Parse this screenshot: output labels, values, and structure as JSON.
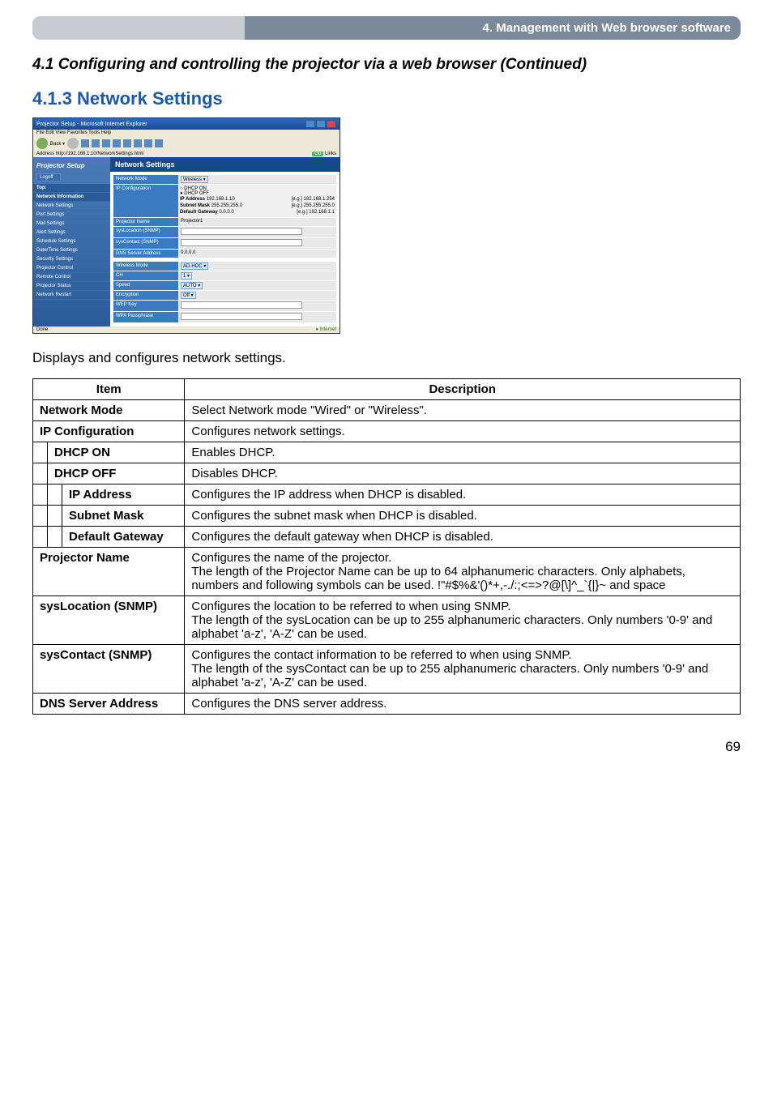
{
  "header": {
    "title": "4. Management with Web browser software"
  },
  "section": {
    "title": "4.1 Configuring and controlling the projector via a web browser (Continued)"
  },
  "subsection": {
    "title": "4.1.3 Network Settings"
  },
  "screenshot": {
    "window_title": "Projector Setup - Microsoft Internet Explorer",
    "menubar": "File  Edit  View  Favorites  Tools  Help",
    "addr_label": "Address",
    "addr_url": "http://192.168.1.10/NetworkSettings.html",
    "go_label": "Go",
    "links_label": "Links",
    "logo": "Projector Setup",
    "logoff": "Logoff",
    "nav": [
      "Top:",
      "Network Information",
      "Network Settings",
      "Port Settings",
      "Mail Settings",
      "Alert Settings",
      "Schedule Settings",
      "Date/Time Settings",
      "Security Settings",
      "Projector Control",
      "Remote Control",
      "Projector Status",
      "Network Restart"
    ],
    "panel_title": "Network Settings",
    "form": {
      "network_mode_lbl": "Network Mode",
      "network_mode_val": "Wireless ▾",
      "ipconfig_lbl": "IP Configuration",
      "dhcp_on": "DHCP ON",
      "dhcp_off": "DHCP OFF",
      "ip_lbl": "IP Address",
      "ip_val": "192.168.1.10",
      "ip_ex": "[e.g.] 192.168.1.254",
      "mask_lbl": "Subnet Mask",
      "mask_val": "255.255.255.0",
      "mask_ex": "[e.g.] 255.255.255.0",
      "gw_lbl": "Default Gateway",
      "gw_val": "0.0.0.0",
      "gw_ex": "[e.g.] 192.168.1.1",
      "pjname_lbl": "Projector Name",
      "pjname_val": "Projector1",
      "sysloc_lbl": "sysLocation (SNMP)",
      "syscon_lbl": "sysContact (SNMP)",
      "dns_lbl": "DNS Server Address",
      "dns_val": "0.0.0.0",
      "wmode_lbl": "Wireless Mode",
      "wmode_val": "AD-HOC ▾",
      "ch_lbl": "CH",
      "ch_val": "1 ▾",
      "speed_lbl": "Speed",
      "speed_val": "AUTO ▾",
      "enc_lbl": "Encryption",
      "enc_val": "Off ▾",
      "wep_lbl": "WEP Key",
      "wpa_lbl": "WPA Passphrase"
    },
    "status_done": "Done",
    "status_internet": "Internet"
  },
  "intro": "Displays and configures network settings.",
  "table": {
    "h_item": "Item",
    "h_desc": "Description",
    "rows": [
      {
        "item": "Network Mode",
        "desc": "Select Network mode \"Wired\" or \"Wireless\".",
        "indent": 0
      },
      {
        "item": "IP Configuration",
        "desc": "Configures network settings.",
        "indent": 0
      },
      {
        "item": "DHCP ON",
        "desc": "Enables DHCP.",
        "indent": 1
      },
      {
        "item": "DHCP OFF",
        "desc": "Disables DHCP.",
        "indent": 1
      },
      {
        "item": "IP Address",
        "desc": "Configures the IP address when DHCP is disabled.",
        "indent": 2
      },
      {
        "item": "Subnet Mask",
        "desc": "Configures the subnet mask when DHCP is disabled.",
        "indent": 2
      },
      {
        "item": "Default Gateway",
        "desc": "Configures the default gateway when DHCP is disabled.",
        "indent": 2
      },
      {
        "item": "Projector Name",
        "desc": "Configures the name of the projector.\nThe length of the Projector Name can be up to 64 alphanumeric characters. Only alphabets, numbers and following symbols can be used.  !\"#$%&'()*+,-./:;<=>?@[\\]^_`{|}~ and space",
        "indent": 0
      },
      {
        "item": "sysLocation (SNMP)",
        "desc": "Configures the location to be referred to when using SNMP.\nThe length of the sysLocation can be up to 255 alphanumeric characters. Only numbers '0-9' and alphabet 'a-z', 'A-Z' can be used.",
        "indent": 0
      },
      {
        "item": "sysContact (SNMP)",
        "desc": "Configures the contact information to be referred to when using SNMP.\nThe length of the sysContact can be up to 255 alphanumeric characters. Only numbers '0-9' and alphabet 'a-z', 'A-Z' can be used.",
        "indent": 0
      },
      {
        "item": "DNS Server Address",
        "desc": "Configures the DNS  server address.",
        "indent": 0
      }
    ]
  },
  "page_number": "69"
}
